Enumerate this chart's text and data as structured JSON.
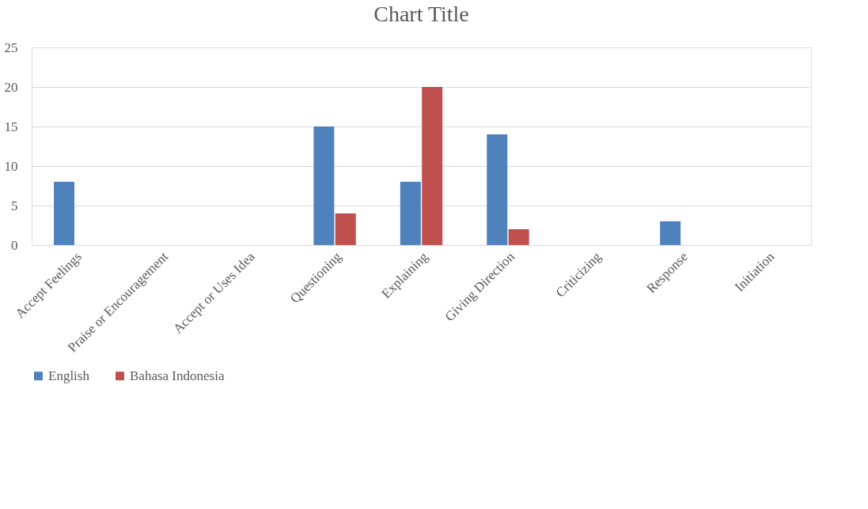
{
  "chart_data": {
    "type": "bar",
    "title": "Chart Title",
    "categories": [
      "Accept Feelings",
      "Praise or Encouragement",
      "Accept or Uses Idea",
      "Questioning",
      "Explaining",
      "Giving Direction",
      "Criticizing",
      "Response",
      "Initiation"
    ],
    "series": [
      {
        "name": "English",
        "color": "#4f81bd",
        "values": [
          8,
          0,
          0,
          15,
          8,
          14,
          0,
          3,
          0
        ]
      },
      {
        "name": "Bahasa Indonesia",
        "color": "#c0504d",
        "values": [
          0,
          0,
          0,
          4,
          20,
          2,
          0,
          0,
          0
        ]
      }
    ],
    "ylim": [
      0,
      25
    ],
    "yticks": [
      0,
      5,
      10,
      15,
      20,
      25
    ],
    "grid": "y",
    "legend": "bottom"
  }
}
